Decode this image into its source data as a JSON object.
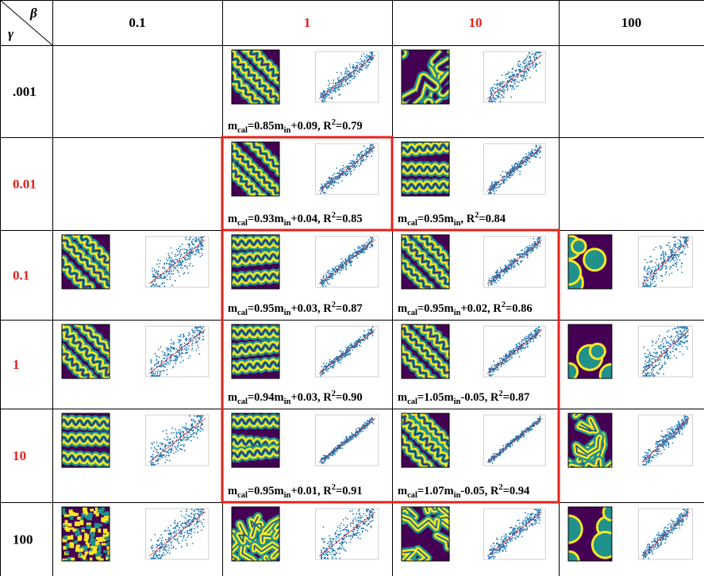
{
  "corner": {
    "col_symbol": "β",
    "row_symbol": "γ"
  },
  "col_headers": [
    {
      "label": "0.1",
      "color": "#000000"
    },
    {
      "label": "1",
      "color": "#e8201a"
    },
    {
      "label": "10",
      "color": "#e8201a"
    },
    {
      "label": "100",
      "color": "#000000"
    }
  ],
  "row_headers": [
    {
      "label": ".001",
      "color": "#000000"
    },
    {
      "label": "0.01",
      "color": "#e8201a"
    },
    {
      "label": "0.1",
      "color": "#e8201a"
    },
    {
      "label": "1",
      "color": "#e8201a"
    },
    {
      "label": "10",
      "color": "#e8201a"
    },
    {
      "label": "100",
      "color": "#000000"
    }
  ],
  "colors": {
    "map_background": "#440154",
    "map_band": "#fde725",
    "map_band_edge": "#21918c",
    "scatter_point": "#1f77b4",
    "fit_line": "#e8201a",
    "highlight_box": "#e8201a"
  },
  "chart_data": [
    {
      "type": "scatter",
      "row": ".001",
      "col": "0.1",
      "present": false
    },
    {
      "type": "scatter",
      "row": ".001",
      "col": "1",
      "present": true,
      "map_pattern": "diagonal-bands",
      "spread": 0.16,
      "slope": 0.85,
      "intercept": 0.09,
      "r2": 0.79,
      "caption": {
        "prefix": "m",
        "sub1": "cal",
        "mid": "=0.85m",
        "sub2": "in",
        "suffix": "+0.09, R",
        "sup": "2",
        "end": "=0.79"
      }
    },
    {
      "type": "scatter",
      "row": ".001",
      "col": "10",
      "present": true,
      "map_pattern": "patchy",
      "spread": 0.22,
      "caption": null
    },
    {
      "type": "scatter",
      "row": ".001",
      "col": "100",
      "present": false
    },
    {
      "type": "scatter",
      "row": "0.01",
      "col": "0.1",
      "present": false
    },
    {
      "type": "scatter",
      "row": "0.01",
      "col": "1",
      "present": true,
      "map_pattern": "diagonal-bands",
      "spread": 0.12,
      "slope": 0.93,
      "intercept": 0.04,
      "r2": 0.85,
      "caption": {
        "prefix": "m",
        "sub1": "cal",
        "mid": "=0.93m",
        "sub2": "in",
        "suffix": "+0.04, R",
        "sup": "2",
        "end": "=0.85"
      }
    },
    {
      "type": "scatter",
      "row": "0.01",
      "col": "10",
      "present": true,
      "map_pattern": "wavy-horizontal",
      "spread": 0.12,
      "slope": 0.95,
      "intercept": 0,
      "r2": 0.84,
      "caption": {
        "prefix": "m",
        "sub1": "cal",
        "mid": "=0.95m",
        "sub2": "in",
        "suffix": ", R",
        "sup": "2",
        "end": "=0.84"
      }
    },
    {
      "type": "scatter",
      "row": "0.01",
      "col": "100",
      "present": false
    },
    {
      "type": "scatter",
      "row": "0.1",
      "col": "0.1",
      "present": true,
      "map_pattern": "diagonal-bands",
      "spread": 0.3,
      "caption": null
    },
    {
      "type": "scatter",
      "row": "0.1",
      "col": "1",
      "present": true,
      "map_pattern": "wavy-horizontal",
      "spread": 0.11,
      "slope": 0.95,
      "intercept": 0.03,
      "r2": 0.87,
      "caption": {
        "prefix": "m",
        "sub1": "cal",
        "mid": "=0.95m",
        "sub2": "in",
        "suffix": "+0.03, R",
        "sup": "2",
        "end": "=0.87"
      }
    },
    {
      "type": "scatter",
      "row": "0.1",
      "col": "10",
      "present": true,
      "map_pattern": "diagonal-bands",
      "spread": 0.1,
      "slope": 0.95,
      "intercept": 0.02,
      "r2": 0.86,
      "caption": {
        "prefix": "m",
        "sub1": "cal",
        "mid": "=0.95m",
        "sub2": "in",
        "suffix": "+0.02, R",
        "sup": "2",
        "end": "=0.86"
      }
    },
    {
      "type": "scatter",
      "row": "0.1",
      "col": "100",
      "present": true,
      "map_pattern": "blobs",
      "spread": 0.35,
      "caption": null
    },
    {
      "type": "scatter",
      "row": "1",
      "col": "0.1",
      "present": true,
      "map_pattern": "diagonal-bands",
      "spread": 0.3,
      "caption": null
    },
    {
      "type": "scatter",
      "row": "1",
      "col": "1",
      "present": true,
      "map_pattern": "wavy-horizontal",
      "spread": 0.09,
      "slope": 0.94,
      "intercept": 0.03,
      "r2": 0.9,
      "caption": {
        "prefix": "m",
        "sub1": "cal",
        "mid": "=0.94m",
        "sub2": "in",
        "suffix": "+0.03, R",
        "sup": "2",
        "end": "=0.90"
      }
    },
    {
      "type": "scatter",
      "row": "1",
      "col": "10",
      "present": true,
      "map_pattern": "diagonal-bands",
      "spread": 0.1,
      "slope": 1.05,
      "intercept": -0.05,
      "r2": 0.87,
      "caption": {
        "prefix": "m",
        "sub1": "cal",
        "mid": "=1.05m",
        "sub2": "in",
        "suffix": "-0.05, R",
        "sup": "2",
        "end": "=0.87"
      }
    },
    {
      "type": "scatter",
      "row": "1",
      "col": "100",
      "present": true,
      "map_pattern": "blobs",
      "spread": 0.35,
      "caption": null
    },
    {
      "type": "scatter",
      "row": "10",
      "col": "0.1",
      "present": true,
      "map_pattern": "wavy-horizontal",
      "spread": 0.28,
      "caption": null
    },
    {
      "type": "scatter",
      "row": "10",
      "col": "1",
      "present": true,
      "map_pattern": "wavy-horizontal",
      "spread": 0.07,
      "slope": 0.95,
      "intercept": 0.01,
      "r2": 0.91,
      "caption": {
        "prefix": "m",
        "sub1": "cal",
        "mid": "=0.95m",
        "sub2": "in",
        "suffix": "+0.01, R",
        "sup": "2",
        "end": "=0.91"
      }
    },
    {
      "type": "scatter",
      "row": "10",
      "col": "10",
      "present": true,
      "map_pattern": "diagonal-bands",
      "spread": 0.06,
      "slope": 1.07,
      "intercept": -0.05,
      "r2": 0.94,
      "caption": {
        "prefix": "m",
        "sub1": "cal",
        "mid": "=1.07m",
        "sub2": "in",
        "suffix": "-0.05, R",
        "sup": "2",
        "end": "=0.94"
      }
    },
    {
      "type": "scatter",
      "row": "10",
      "col": "100",
      "present": true,
      "map_pattern": "maze",
      "spread": 0.14,
      "caption": null
    },
    {
      "type": "scatter",
      "row": "100",
      "col": "0.1",
      "present": true,
      "map_pattern": "noise",
      "spread": 0.3,
      "caption": null
    },
    {
      "type": "scatter",
      "row": "100",
      "col": "1",
      "present": true,
      "map_pattern": "maze",
      "spread": 0.3,
      "caption": null
    },
    {
      "type": "scatter",
      "row": "100",
      "col": "10",
      "present": true,
      "map_pattern": "maze",
      "spread": 0.18,
      "caption": null
    },
    {
      "type": "scatter",
      "row": "100",
      "col": "100",
      "present": true,
      "map_pattern": "blobs",
      "spread": 0.14,
      "caption": null
    }
  ]
}
